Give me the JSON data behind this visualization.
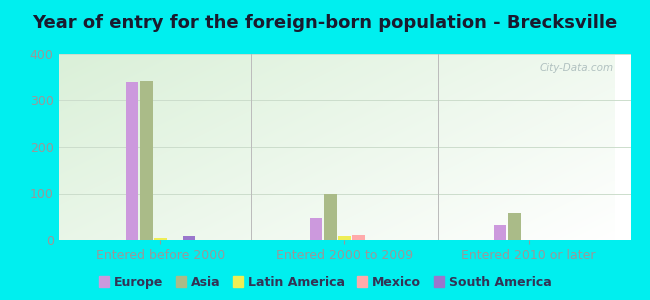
{
  "title": "Year of entry for the foreign-born population - Brecksville",
  "background_outer": "#00EFEF",
  "background_inner_topleft": "#daf0d8",
  "background_inner_right": "#f5fff5",
  "background_inner_bottom": "#ffffff",
  "groups": [
    "Entered before 2000",
    "Entered 2000 to 2009",
    "Entered 2010 or later"
  ],
  "series": [
    "Europe",
    "Asia",
    "Latin America",
    "Mexico",
    "South America"
  ],
  "colors": [
    "#cc99dd",
    "#aabb88",
    "#eeee55",
    "#ffaaaa",
    "#9977cc"
  ],
  "data": [
    [
      340,
      343,
      5,
      0,
      8
    ],
    [
      48,
      98,
      8,
      10,
      0
    ],
    [
      33,
      58,
      0,
      0,
      0
    ]
  ],
  "ylim": [
    0,
    400
  ],
  "yticks": [
    0,
    100,
    200,
    300,
    400
  ],
  "tick_color": "#999999",
  "grid_color": "#ccddcc",
  "watermark": "City-Data.com",
  "watermark_color": "#aabbbb",
  "title_fontsize": 13,
  "legend_fontsize": 9,
  "tick_fontsize": 9,
  "group_label_fontsize": 9
}
